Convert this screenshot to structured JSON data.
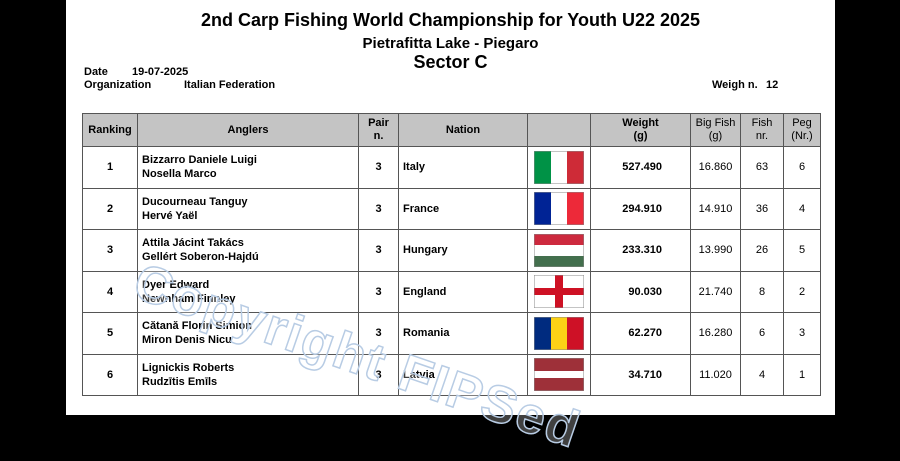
{
  "header": {
    "title": "2nd Carp Fishing World Championship for Youth U22 2025",
    "subtitle": "Pietrafitta Lake - Piegaro",
    "sector": "Sector C"
  },
  "info": {
    "date_label": "Date",
    "date": "19-07-2025",
    "organization_label": "Organization",
    "organization": "Italian Federation",
    "weigh_label": "Weigh n.",
    "weigh": "12"
  },
  "table": {
    "headers": [
      [
        "Ranking"
      ],
      [
        "Anglers"
      ],
      [
        "Pair",
        "n."
      ],
      [
        "Nation"
      ],
      [
        ""
      ],
      [
        "Weight",
        "(g)"
      ],
      [
        "Big Fish",
        "(g)"
      ],
      [
        "Fish",
        "nr."
      ],
      [
        "Peg",
        "(Nr.)"
      ]
    ],
    "rows": [
      [
        "1",
        "Bizzarro  Daniele Luigi",
        "Nosella Marco",
        "3",
        "Italy",
        "527.490",
        "16.860",
        "63",
        "6"
      ],
      [
        "2",
        "Ducourneau Tanguy",
        "Hervé Yaël",
        "3",
        "France",
        "294.910",
        "14.910",
        "36",
        "4"
      ],
      [
        "3",
        "Attila Jácint Takács",
        "Gellért Soberon-Hajdú",
        "3",
        "Hungary",
        "233.310",
        "13.990",
        "26",
        "5"
      ],
      [
        "4",
        "Dyer Edward",
        "Newnham Finnley",
        "3",
        "England",
        "90.030",
        "21.740",
        "8",
        "2"
      ],
      [
        "5",
        "Cătană Florin Simion",
        "Miron Denis Nicu",
        "3",
        "Romania",
        "62.270",
        "16.280",
        "6",
        "3"
      ],
      [
        "6",
        "Lignickis Roberts",
        "Rudzītis Emīls",
        "3",
        "Latvia",
        "34.710",
        "11.020",
        "4",
        "1"
      ]
    ]
  },
  "watermark": "Copyright FIPSed"
}
